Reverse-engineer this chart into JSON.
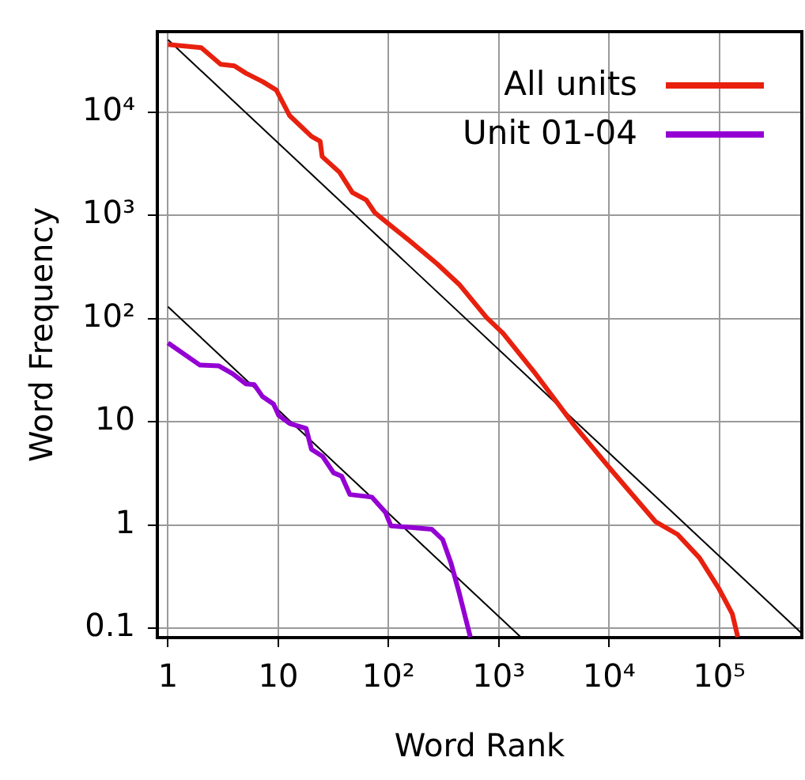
{
  "chart_data": {
    "type": "line",
    "xlabel": "Word Rank",
    "ylabel": "Word Frequency",
    "log": "xy",
    "grid": true,
    "legend": "top right",
    "marker": "none",
    "line_style": "solid",
    "xlim": [
      0.8,
      560000
    ],
    "ylim": [
      0.081,
      60000
    ],
    "xticks": [
      1,
      10,
      {
        "value": 100,
        "label": "10²"
      },
      {
        "value": 1000,
        "label": "10³"
      },
      {
        "value": 10000,
        "label": "10⁴"
      },
      {
        "value": 100000,
        "label": "10⁵"
      }
    ],
    "yticks": [
      0.1,
      1,
      10,
      {
        "value": 100,
        "label": "10²"
      },
      {
        "value": 1000,
        "label": "10³"
      },
      {
        "value": 10000,
        "label": "10⁴"
      }
    ],
    "series": [
      {
        "name": "All units",
        "color": "#e8200e",
        "x": [
          1,
          2,
          3,
          4,
          5.1,
          7.2,
          9.6,
          12.7,
          20,
          24,
          25,
          36,
          47,
          63,
          75,
          105,
          157,
          277,
          437,
          774,
          1090,
          2160,
          4790,
          10600,
          26500,
          41800,
          66000,
          98400,
          131000,
          147000
        ],
        "values": [
          45000,
          42000,
          29000,
          28000,
          23700,
          19700,
          16300,
          9200,
          5800,
          5200,
          3700,
          2600,
          1660,
          1400,
          1060,
          790,
          560,
          337,
          214,
          102,
          72,
          29,
          9.3,
          3.35,
          1.07,
          0.81,
          0.48,
          0.245,
          0.138,
          0.082
        ]
      },
      {
        "name": "Unit 01-04",
        "color": "#9400d3",
        "x": [
          1,
          1.94,
          2.9,
          3.85,
          5.1,
          6.07,
          7.2,
          9.06,
          10.1,
          12.7,
          17.9,
          20,
          25.3,
          31.7,
          37.6,
          44.6,
          70.7,
          94,
          105,
          246,
          310,
          368,
          437,
          552
        ],
        "values": [
          58,
          35.4,
          34.7,
          29.2,
          23.2,
          22.8,
          17.5,
          14.8,
          11.5,
          9.6,
          8.6,
          5.4,
          4.6,
          3.2,
          2.96,
          1.97,
          1.86,
          1.32,
          0.98,
          0.91,
          0.72,
          0.43,
          0.22,
          0.082
        ]
      },
      {
        "type": "line",
        "color": "#000000",
        "x": [
          1,
          560000
        ],
        "values": [
          50000,
          0.089
        ]
      },
      {
        "type": "line",
        "color": "#000000",
        "x": [
          1,
          1600
        ],
        "values": [
          130,
          0.081
        ]
      }
    ]
  }
}
